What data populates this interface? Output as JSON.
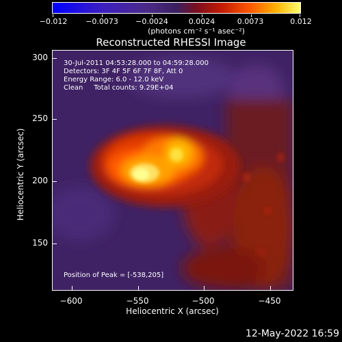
{
  "colorbar": {
    "ticks": [
      "−0.012",
      "−0.0073",
      "−0.0024",
      "0.0024",
      "0.0073",
      "0.012"
    ],
    "units": "(photons cm⁻² s⁻¹ asec⁻²)"
  },
  "title": "Reconstructed RHESSI Image",
  "info": {
    "time_range": "30-Jul-2011 04:53:28.000 to 04:59:28.000",
    "detectors": "Detectors: 3F 4F 5F 6F 7F 8F, Att 0",
    "energy": "Energy Range: 6.0 - 12.0 keV",
    "clean": "Clean     Total counts: 9.29E+04",
    "peak": "Position of Peak = [-538,205]"
  },
  "axes": {
    "xlabel": "Heliocentric X (arcsec)",
    "ylabel": "Heliocentric Y (arcsec)",
    "xticks": [
      "−600",
      "−550",
      "−500",
      "−450"
    ],
    "yticks": [
      "300",
      "250",
      "200",
      "150"
    ]
  },
  "timestamp": "12-May-2022 16:59"
}
